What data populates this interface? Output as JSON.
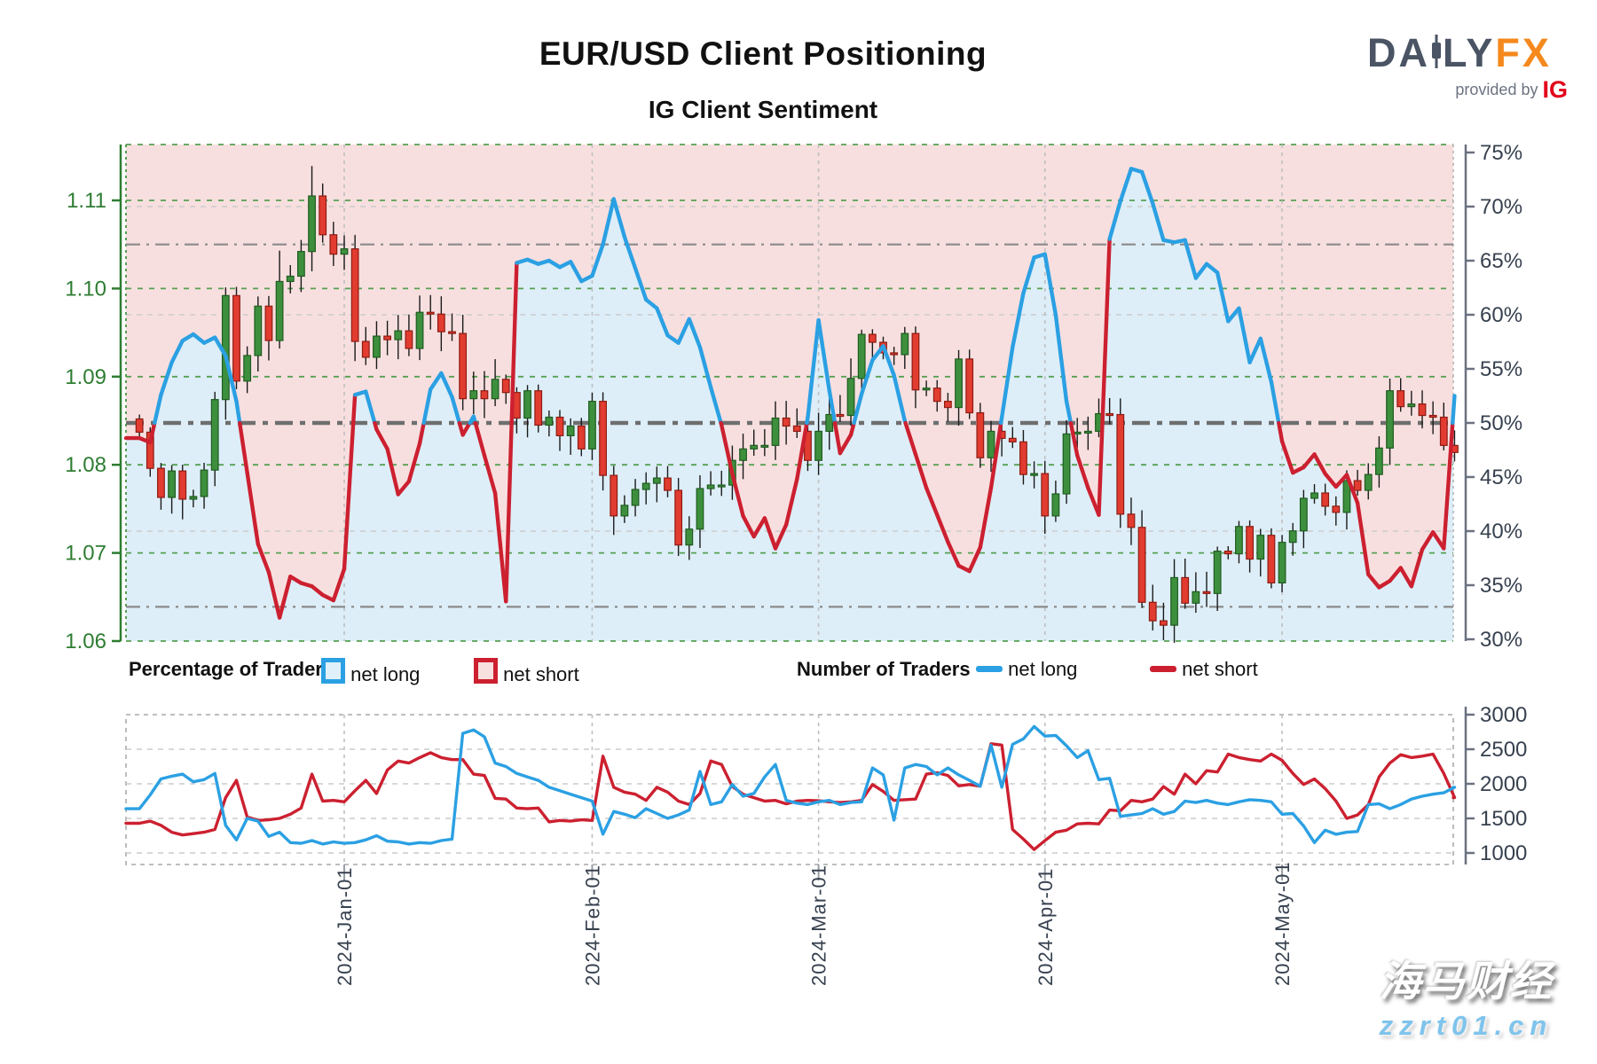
{
  "title": "EUR/USD Client Positioning",
  "subtitle": "IG Client Sentiment",
  "logo": {
    "brand_left": "DA",
    "brand_mid": "LY",
    "brand_fx": "FX",
    "tagline": "provided by",
    "ig": "IG"
  },
  "legend": {
    "pct_label": "Percentage of Traders",
    "num_label": "Number of Traders",
    "net_long": "net long",
    "net_short": "net short"
  },
  "watermark": {
    "line1": "海马财经",
    "line2": "zzrt01.cn"
  },
  "axes": {
    "price_ticks": [
      1.11,
      1.1,
      1.09,
      1.08,
      1.07,
      1.06
    ],
    "pct_ticks": [
      75,
      70,
      65,
      60,
      55,
      50,
      45,
      40,
      35,
      30
    ],
    "count_ticks": [
      3000,
      2500,
      2000,
      1500,
      1000
    ],
    "date_ticks": [
      "2024-Jan-01",
      "2024-Feb-01",
      "2024-Mar-01",
      "2024-Apr-01",
      "2024-May-01"
    ]
  },
  "chart_data": {
    "type": "candlestick+line",
    "title": "EUR/USD Client Positioning",
    "x_start": "2023-Dec-04",
    "x_end": "2024-May-23",
    "month_tick_indices": [
      19,
      42,
      63,
      84,
      106
    ],
    "main": {
      "price_range": [
        1.06,
        1.1163
      ],
      "pct_range": [
        30,
        75.7
      ],
      "price_gridlines": [
        1.11,
        1.1,
        1.09,
        1.08,
        1.07,
        1.06
      ],
      "pct_gridlines": [
        70,
        60,
        40
      ],
      "reference_lines_thin": [
        66.5,
        33
      ],
      "reference_line_mid": 50,
      "price_close": [
        1.0837,
        1.0796,
        1.0763,
        1.0793,
        1.0761,
        1.0764,
        1.0794,
        1.0874,
        1.0992,
        1.0895,
        1.0924,
        1.098,
        1.0941,
        1.1008,
        1.1014,
        1.1042,
        1.1105,
        1.1061,
        1.1039,
        1.1045,
        1.094,
        1.0922,
        1.0946,
        1.0942,
        1.0952,
        1.0932,
        1.0973,
        1.0971,
        1.0951,
        1.0949,
        1.0875,
        1.0884,
        1.0875,
        1.0897,
        1.0882,
        1.0853,
        1.0884,
        1.0845,
        1.0854,
        1.0833,
        1.0844,
        1.0818,
        1.0872,
        1.0788,
        1.0742,
        1.0754,
        1.0772,
        1.0779,
        1.0785,
        1.0771,
        1.0709,
        1.0727,
        1.0773,
        1.0777,
        1.0777,
        1.0805,
        1.0818,
        1.0822,
        1.0822,
        1.0853,
        1.0844,
        1.0838,
        1.0805,
        1.0838,
        1.0857,
        1.0856,
        1.0898,
        1.0948,
        1.0939,
        1.0927,
        1.0925,
        1.0949,
        1.0885,
        1.0887,
        1.0872,
        1.0865,
        1.092,
        1.0859,
        1.0808,
        1.0838,
        1.083,
        1.0826,
        1.0789,
        1.079,
        1.0742,
        1.0767,
        1.0835,
        1.0837,
        1.0838,
        1.0858,
        1.0857,
        1.0744,
        1.0729,
        1.0644,
        1.0623,
        1.0618,
        1.0672,
        1.0643,
        1.0656,
        1.0654,
        1.0702,
        1.0699,
        1.073,
        1.0693,
        1.072,
        1.0666,
        1.0712,
        1.0725,
        1.0762,
        1.0768,
        1.0753,
        1.0746,
        1.0782,
        1.0771,
        1.0789,
        1.0819,
        1.0884,
        1.0866,
        1.0869,
        1.0856,
        1.0854,
        1.0822,
        1.0814
      ],
      "wick_overrides": {
        "high": {
          "16": 1.1139,
          "13": 1.1043
        },
        "low": {
          "95": 1.0601
        }
      },
      "sentiment_net_long_pct": [
        48.6,
        48.2,
        52.6,
        55.6,
        57.6,
        58.2,
        57.4,
        57.9,
        56.2,
        52.0,
        45.4,
        38.8,
        36.2,
        32.0,
        35.8,
        35.2,
        34.9,
        34.1,
        33.6,
        36.5,
        52.6,
        52.9,
        49.4,
        47.6,
        43.4,
        44.6,
        48.1,
        53.1,
        54.6,
        52.4,
        48.9,
        50.6,
        47.0,
        43.5,
        33.5,
        64.8,
        65.1,
        64.7,
        65.0,
        64.4,
        64.9,
        63.1,
        63.6,
        66.5,
        70.7,
        67.2,
        64.3,
        61.4,
        60.6,
        58.1,
        57.4,
        59.6,
        57.0,
        53.3,
        49.8,
        45.3,
        41.4,
        39.5,
        41.2,
        38.4,
        40.6,
        44.8,
        50.5,
        59.5,
        53.0,
        47.2,
        48.9,
        52.7,
        55.8,
        57.1,
        54.4,
        50.2,
        47.1,
        44.0,
        41.5,
        39.0,
        36.8,
        36.3,
        38.5,
        44.0,
        50.5,
        57.0,
        62.0,
        65.3,
        65.6,
        60.0,
        52.0,
        47.0,
        44.0,
        41.5,
        67.0,
        70.5,
        73.5,
        73.2,
        70.3,
        66.9,
        66.7,
        66.9,
        63.4,
        64.7,
        63.9,
        59.4,
        60.6,
        55.6,
        57.8,
        53.8,
        48.3,
        45.4,
        45.9,
        47.1,
        45.3,
        44.1,
        45.2,
        42.6,
        36.0,
        34.8,
        35.4,
        36.6,
        34.9,
        38.3,
        39.9,
        38.4,
        52.5
      ]
    },
    "bottom": {
      "count_range": [
        834,
        3000
      ],
      "count_gridlines": [
        2500,
        2000,
        1500,
        1000
      ],
      "net_long_count": [
        1640,
        1840,
        2070,
        2110,
        2140,
        2030,
        2060,
        2150,
        1400,
        1190,
        1500,
        1460,
        1240,
        1300,
        1150,
        1140,
        1180,
        1130,
        1160,
        1140,
        1150,
        1190,
        1250,
        1170,
        1160,
        1130,
        1150,
        1140,
        1180,
        1200,
        2730,
        2780,
        2680,
        2300,
        2250,
        2150,
        2100,
        2050,
        1950,
        1900,
        1850,
        1800,
        1750,
        1270,
        1600,
        1560,
        1510,
        1640,
        1570,
        1500,
        1550,
        1620,
        2180,
        1700,
        1740,
        1990,
        1820,
        1860,
        2100,
        2280,
        1760,
        1720,
        1700,
        1740,
        1760,
        1700,
        1730,
        1740,
        2230,
        2130,
        1475,
        2230,
        2280,
        2250,
        2130,
        2230,
        2130,
        2050,
        1965,
        2560,
        1950,
        2570,
        2650,
        2830,
        2690,
        2700,
        2550,
        2380,
        2480,
        2060,
        2080,
        1530,
        1550,
        1570,
        1640,
        1560,
        1600,
        1750,
        1730,
        1760,
        1720,
        1700,
        1740,
        1770,
        1760,
        1740,
        1560,
        1570,
        1390,
        1150,
        1330,
        1270,
        1300,
        1310,
        1700,
        1710,
        1640,
        1700,
        1780,
        1820,
        1850,
        1870,
        1950
      ],
      "net_short_count": [
        1430,
        1460,
        1400,
        1300,
        1260,
        1280,
        1300,
        1340,
        1800,
        2050,
        1520,
        1470,
        1480,
        1500,
        1560,
        1650,
        2140,
        1750,
        1760,
        1740,
        1900,
        2050,
        1860,
        2200,
        2330,
        2300,
        2380,
        2450,
        2380,
        2350,
        2350,
        2140,
        2120,
        1790,
        1780,
        1650,
        1640,
        1650,
        1450,
        1470,
        1460,
        1480,
        1470,
        2400,
        1950,
        1880,
        1850,
        1760,
        1950,
        1880,
        1750,
        1700,
        1860,
        2330,
        2280,
        1960,
        1850,
        1800,
        1750,
        1760,
        1710,
        1750,
        1760,
        1755,
        1740,
        1730,
        1740,
        1760,
        1990,
        1890,
        1760,
        1770,
        1780,
        2140,
        2160,
        2120,
        1970,
        1990,
        1965,
        2580,
        2560,
        1340,
        1200,
        1050,
        1180,
        1300,
        1330,
        1420,
        1430,
        1420,
        1620,
        1610,
        1760,
        1740,
        1780,
        1960,
        1850,
        2140,
        2000,
        2190,
        2170,
        2430,
        2380,
        2350,
        2330,
        2430,
        2340,
        2150,
        1990,
        2070,
        1930,
        1750,
        1500,
        1550,
        1700,
        2100,
        2300,
        2420,
        2380,
        2400,
        2430,
        2150,
        1800
      ]
    }
  },
  "colors": {
    "candle_up": "#3d8f3d",
    "candle_up_border": "#1f5c1f",
    "candle_down": "#e23c30",
    "candle_down_border": "#8e1b12",
    "wick": "#1a1a1a",
    "net_long_line": "#2BA0E3",
    "net_short_line": "#CC2030",
    "long_fill": "#ddeef8",
    "short_fill": "#f8dfdf",
    "price_axis_green": "#2E7D32",
    "axis_text_dark": "#37414F",
    "grid_green": "#55a052",
    "grid_gray": "#cccccc",
    "border_gray": "#b5b5b5",
    "ref_line_gray": "#6e6e6e",
    "logo_slate": "#4A5464",
    "logo_orange": "#F5891D",
    "ig_red": "#E3001B",
    "watermark_blue": "#7fc4ec"
  }
}
